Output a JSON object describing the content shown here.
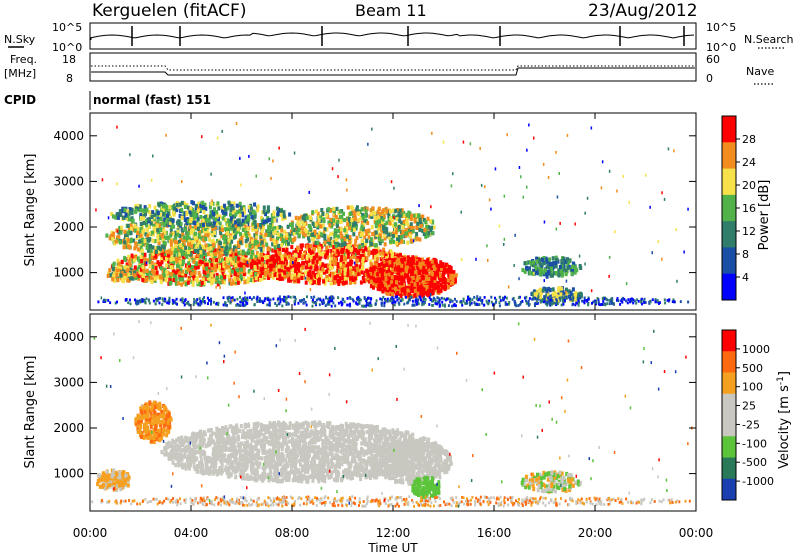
{
  "header": {
    "station": "Kerguelen (fitACF)",
    "beam": "Beam 11",
    "date": "23/Aug/2012"
  },
  "top_panels": {
    "nsky_label": "N.Sky",
    "nsky_ticks": [
      "10^5",
      "10^0"
    ],
    "nsearch_label": "N.Search",
    "nsearch_ticks": [
      "10^5",
      "10^0"
    ],
    "freq_label": "Freq.",
    "freq_unit": "[MHz]",
    "freq_ticks": [
      "18",
      "8"
    ],
    "nave_label": "Nave",
    "nave_ticks": [
      "60",
      "0"
    ],
    "cpid_label": "CPID",
    "cpid_value": "normal (fast) 151"
  },
  "chart_data": [
    {
      "type": "heatmap",
      "name": "power_panel",
      "ylabel": "Slant Range [km]",
      "yticks": [
        "4000",
        "3000",
        "2000",
        "1000"
      ],
      "ylim": [
        180,
        4500
      ],
      "colorbar_label": "Power [dB]",
      "colorbar_ticks": [
        "28",
        "24",
        "20",
        "16",
        "12",
        "8",
        "4"
      ],
      "colors": [
        "#0000ff",
        "#1a4fa8",
        "#2f7d6a",
        "#52b24a",
        "#f7e14a",
        "#f28c1e",
        "#ff0000"
      ]
    },
    {
      "type": "heatmap",
      "name": "velocity_panel",
      "ylabel": "Slant Range [km]",
      "yticks": [
        "4000",
        "3000",
        "2000",
        "1000"
      ],
      "ylim": [
        180,
        4500
      ],
      "colorbar_label": "Velocity [m s",
      "colorbar_label_sup": "-1",
      "colorbar_label_end": "]",
      "colorbar_ticks": [
        "1000",
        "500",
        "100",
        "25",
        "-25",
        "-100",
        "-500",
        "-1000"
      ],
      "colors": [
        "#1a3fb0",
        "#2a7a5a",
        "#5bc43a",
        "#c8c8c0",
        "#c8c8c0",
        "#f5a020",
        "#ff6a10",
        "#ff0000"
      ]
    }
  ],
  "x_axis": {
    "ticks": [
      "00:00",
      "04:00",
      "08:00",
      "12:00",
      "16:00",
      "20:00",
      "00:00"
    ],
    "label": "Time UT"
  }
}
